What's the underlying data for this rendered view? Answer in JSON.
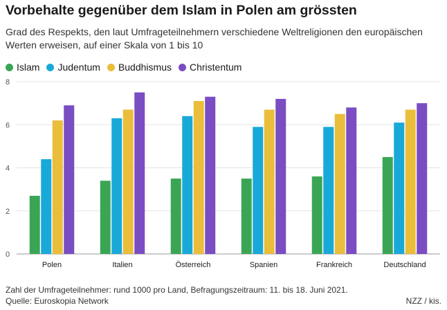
{
  "title": "Vorbehalte gegenüber dem Islam in Polen am grössten",
  "subtitle": "Grad des Respekts, den laut Umfrageteilnehmern verschiedene Weltreligionen den europäischen Werten erweisen, auf einer Skala von 1 bis 10",
  "note": "Zahl der Umfrageteilnehmer: rund 1000 pro Land, Befragungszeitraum: 11. bis 18. Juni 2021.",
  "source": "Quelle: Euroskopia Network",
  "credit": "NZZ / kis.",
  "chart_data": {
    "type": "bar",
    "categories": [
      "Polen",
      "Italien",
      "Österreich",
      "Spanien",
      "Frankreich",
      "Deutschland"
    ],
    "series": [
      {
        "name": "Islam",
        "color": "#3aa655",
        "values": [
          2.7,
          3.4,
          3.5,
          3.5,
          3.6,
          4.5
        ]
      },
      {
        "name": "Judentum",
        "color": "#19a9d9",
        "values": [
          4.4,
          6.3,
          6.4,
          5.9,
          5.9,
          6.1
        ]
      },
      {
        "name": "Buddhismus",
        "color": "#eabd3b",
        "values": [
          6.2,
          6.7,
          7.1,
          6.7,
          6.5,
          6.7
        ]
      },
      {
        "name": "Christentum",
        "color": "#7a4dc2",
        "values": [
          6.9,
          7.5,
          7.3,
          7.2,
          6.8,
          7.0
        ]
      }
    ],
    "y_ticks": [
      "0",
      "2",
      "4",
      "6",
      "8"
    ],
    "ylim": [
      0,
      8
    ],
    "grid": true,
    "legend_position": "top-left"
  }
}
